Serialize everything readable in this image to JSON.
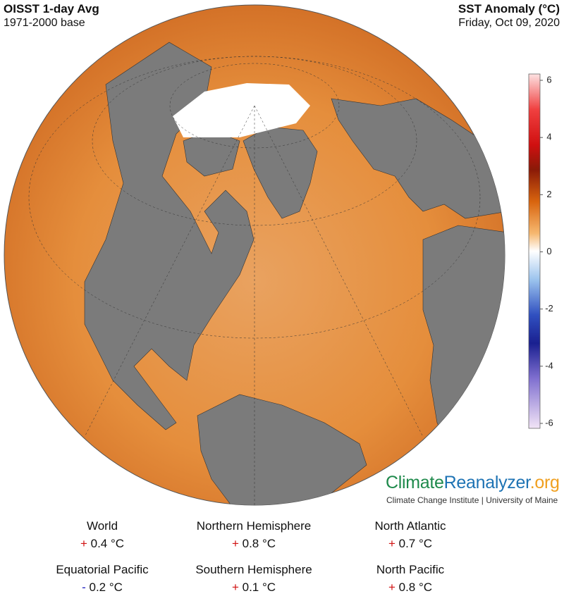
{
  "header": {
    "title": "OISST 1-day Avg",
    "subtitle": "1971-2000 base",
    "variable": "SST Anomaly (°C)",
    "date": "Friday, Oct 09, 2020"
  },
  "colorbar": {
    "ticks": [
      6,
      4,
      2,
      0,
      -2,
      -4,
      -6
    ]
  },
  "logo": {
    "parts": [
      "Climate",
      "Reanalyzer",
      ".org"
    ],
    "tagline": "Climate Change Institute | University of Maine"
  },
  "stats": [
    {
      "name": "World",
      "sign": "+",
      "value": "0.4 °C"
    },
    {
      "name": "Northern Hemisphere",
      "sign": "+",
      "value": "0.8 °C"
    },
    {
      "name": "North Atlantic",
      "sign": "+",
      "value": "0.7 °C"
    },
    {
      "name": "Equatorial Pacific",
      "sign": "-",
      "value": "0.2 °C"
    },
    {
      "name": "Southern Hemisphere",
      "sign": "+",
      "value": "0.1 °C"
    },
    {
      "name": "North Pacific",
      "sign": "+",
      "value": "0.8 °C"
    }
  ]
}
